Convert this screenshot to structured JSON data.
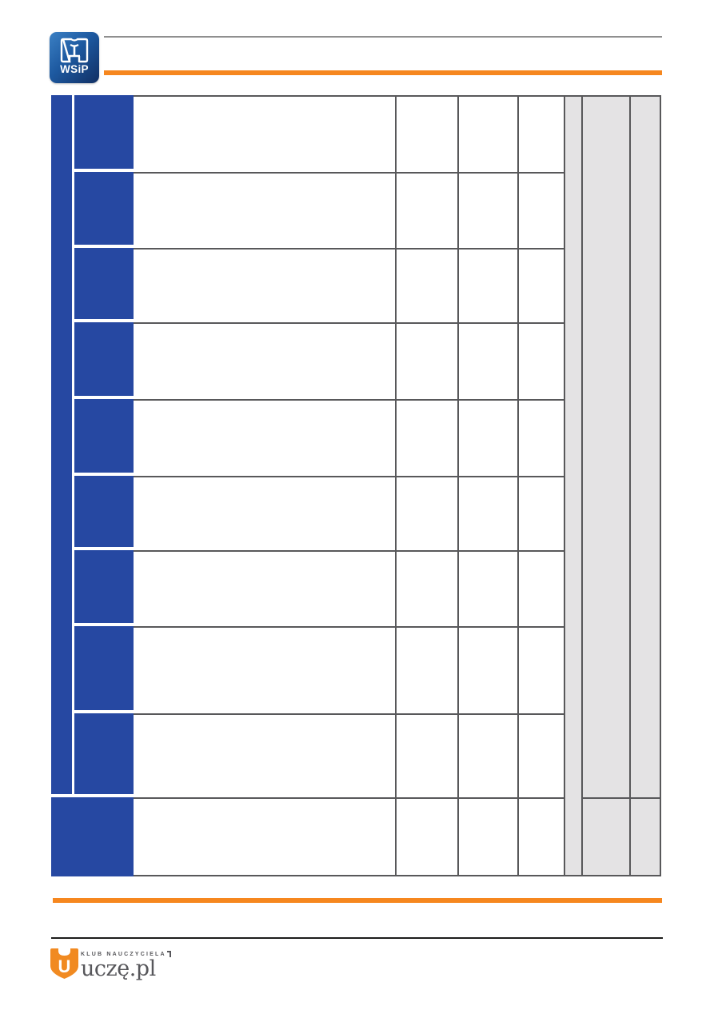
{
  "header": {
    "wsip_logo_text": "WSiP",
    "wsip_icon": "wsip-lectern-book-icon"
  },
  "table": {
    "unit_row_count": 9,
    "total_row_count": 10,
    "blue_label_columns": 2,
    "white_columns": 4,
    "gray_columns": 3,
    "cells_empty": true
  },
  "footer": {
    "klub_label": "KLUB NAUCZYCIELA",
    "brand": "uczę.pl",
    "badge_letter": "U",
    "badge_icon": "ucze-shield-icon"
  },
  "colors": {
    "blue": "#2648A2",
    "orange": "#F6871F",
    "tbl_border": "#58585A",
    "gray_fill": "#E4E3E4",
    "header_rule": "#8F8F8F",
    "footer_rule": "#1D1D1B",
    "text_gray": "#57575B",
    "logo_grad_start": "#3B80C4",
    "logo_grad_mid": "#1D59A0",
    "logo_grad_end": "#112F63"
  }
}
